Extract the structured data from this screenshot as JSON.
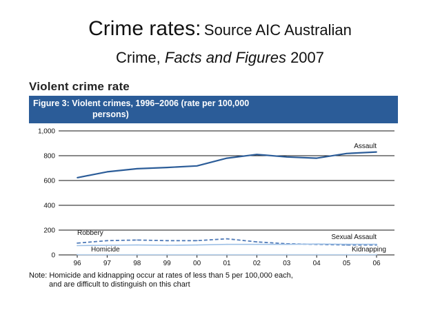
{
  "slide": {
    "title_main": "Crime rates:",
    "title_source": "Source AIC Australian",
    "title_line2_prefix": "Crime, ",
    "title_line2_italic": "Facts and Figures",
    "title_line2_suffix": " 2007"
  },
  "section_heading": "Violent crime rate",
  "figure": {
    "line1": "Figure 3: Violent crimes, 1996–2006 (rate per 100,000",
    "line2": "persons)"
  },
  "note": {
    "line1": "Note: Homicide and kidnapping occur at rates of less than 5 per 100,000 each,",
    "line2": "and are difficult to distinguish on this chart"
  },
  "colors": {
    "header_bg": "#2b5c98",
    "assault": "#2b5c98",
    "robbery": "#4f7ab8",
    "sexual_assault": "#9ec0e6",
    "homicide": "#5e86bf",
    "kidnapping": "#b9d3ee"
  },
  "chart_data": {
    "type": "line",
    "title": "Figure 3: Violent crimes, 1996–2006 (rate per 100,000 persons)",
    "xlabel": "",
    "ylabel": "",
    "categories": [
      "96",
      "97",
      "98",
      "99",
      "00",
      "01",
      "02",
      "03",
      "04",
      "05",
      "06"
    ],
    "ylim": [
      0,
      1000
    ],
    "yticks": [
      0,
      200,
      400,
      600,
      800,
      1000
    ],
    "ytick_labels": [
      "0",
      "200",
      "400",
      "600",
      "800",
      "1,000"
    ],
    "grid": "horizontal",
    "series": [
      {
        "name": "Assault",
        "style": "solid",
        "values": [
          623,
          670,
          695,
          705,
          718,
          780,
          810,
          790,
          780,
          818,
          830
        ]
      },
      {
        "name": "Robbery",
        "style": "dashed",
        "values": [
          95,
          115,
          120,
          115,
          115,
          130,
          105,
          90,
          85,
          80,
          80
        ]
      },
      {
        "name": "Sexual Assault",
        "style": "solid",
        "values": [
          75,
          78,
          80,
          78,
          80,
          85,
          85,
          85,
          88,
          86,
          86
        ]
      },
      {
        "name": "Homicide",
        "style": "solid",
        "values": [
          2,
          2,
          2,
          2,
          2,
          2,
          2,
          2,
          2,
          2,
          2
        ]
      },
      {
        "name": "Kidnapping",
        "style": "solid",
        "values": [
          3,
          3,
          3,
          3,
          3,
          3,
          3,
          3,
          3,
          3,
          3
        ]
      }
    ]
  }
}
